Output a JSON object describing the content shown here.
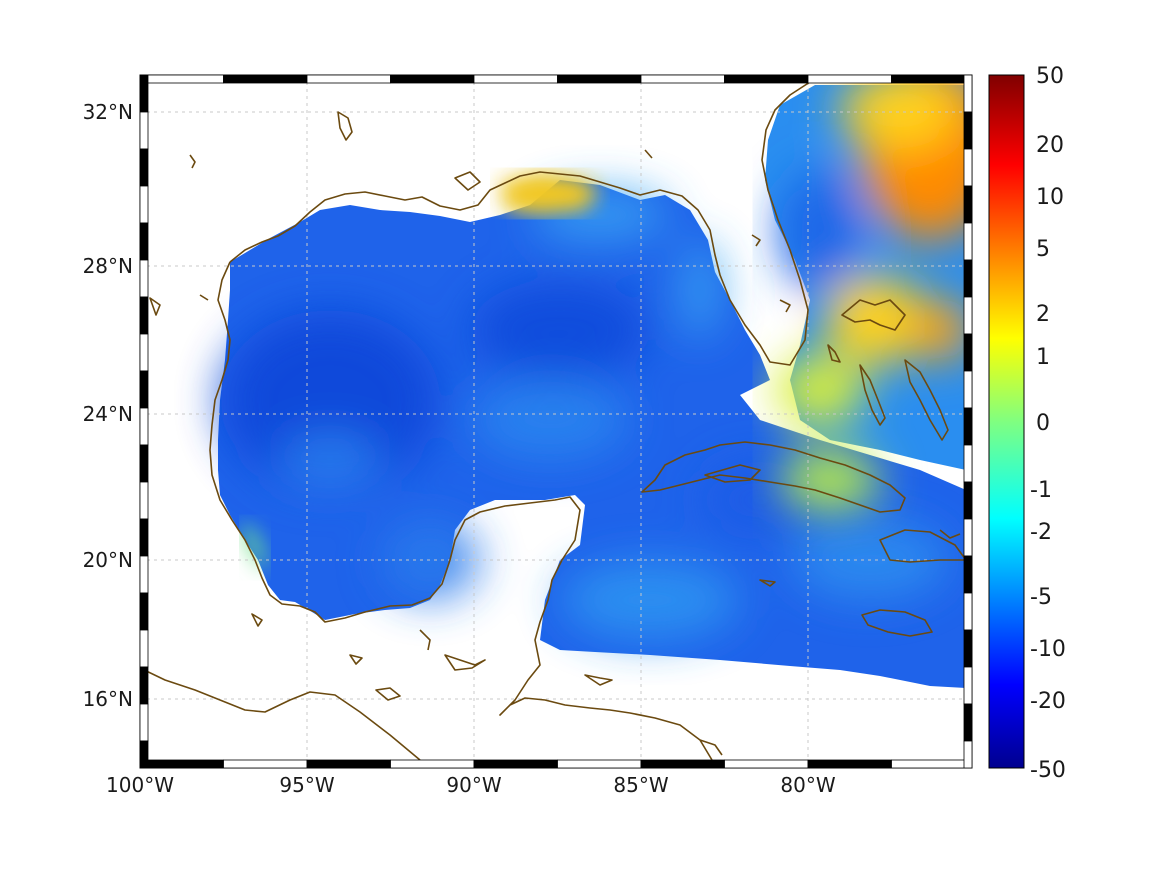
{
  "map": {
    "colors": {
      "coast": "#6b4a10",
      "grid": "#c8c8c8",
      "frame_dark": "#000000",
      "frame_light": "#ffffff",
      "ocean_base": "#1a5ce6"
    },
    "lon_ticks": [
      "100°W",
      "95°W",
      "90°W",
      "85°W",
      "80°W"
    ],
    "lat_ticks": [
      "32°N",
      "28°N",
      "24°N",
      "20°N",
      "16°N"
    ],
    "extent": {
      "lon_min": -100,
      "lon_max": -75.2,
      "lat_min": 14.3,
      "lat_max": 33.0
    },
    "grid": true
  },
  "colorbar": {
    "labels": [
      "50",
      "20",
      "10",
      "5",
      "2",
      "1",
      "0",
      "-1",
      "-2",
      "-5",
      "-10",
      "-20",
      "-50"
    ],
    "colormap": "jet",
    "scale": "nonlinear"
  }
}
